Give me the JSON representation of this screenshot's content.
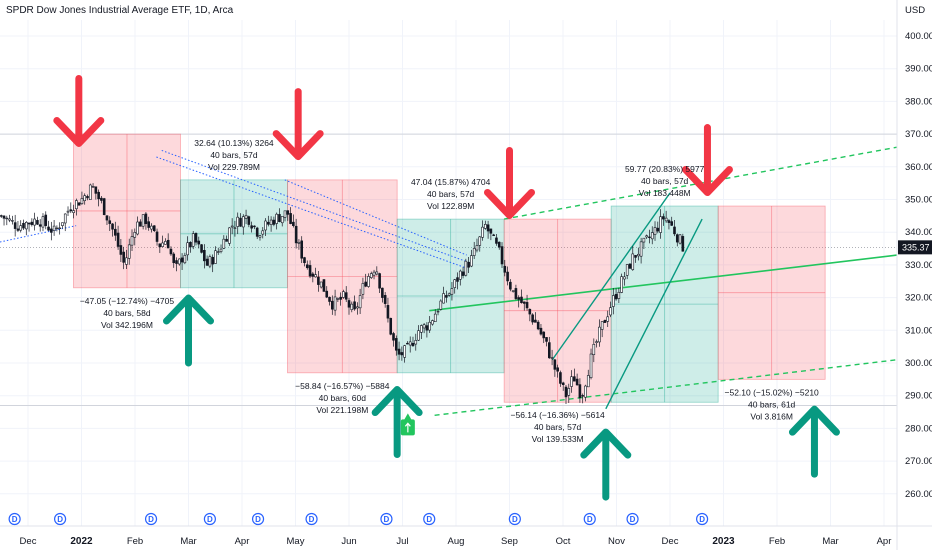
{
  "chart_data": {
    "type": "candlestick",
    "title": "SPDR Dow Jones Industrial Average ETF, 1D, Arca",
    "currency": "USD",
    "y_range": [
      250,
      405
    ],
    "y_ticks": [
      260,
      270,
      280,
      290,
      300,
      310,
      320,
      330,
      340,
      350,
      360,
      370,
      380,
      390,
      400
    ],
    "x_ticks": [
      {
        "label": "Dec",
        "pos": 0.0,
        "bold": false
      },
      {
        "label": "2022",
        "pos": 1.0,
        "bold": true
      },
      {
        "label": "Feb",
        "pos": 2.0,
        "bold": false
      },
      {
        "label": "Mar",
        "pos": 3.0,
        "bold": false
      },
      {
        "label": "Apr",
        "pos": 4.0,
        "bold": false
      },
      {
        "label": "May",
        "pos": 5.0,
        "bold": false
      },
      {
        "label": "Jun",
        "pos": 6.0,
        "bold": false
      },
      {
        "label": "Jul",
        "pos": 7.0,
        "bold": false
      },
      {
        "label": "Aug",
        "pos": 8.0,
        "bold": false
      },
      {
        "label": "Sep",
        "pos": 9.0,
        "bold": false
      },
      {
        "label": "Oct",
        "pos": 10.0,
        "bold": false
      },
      {
        "label": "Nov",
        "pos": 11.0,
        "bold": false
      },
      {
        "label": "Dec",
        "pos": 12.0,
        "bold": false
      },
      {
        "label": "2023",
        "pos": 13.0,
        "bold": true
      },
      {
        "label": "Feb",
        "pos": 14.0,
        "bold": false
      },
      {
        "label": "Mar",
        "pos": 15.0,
        "bold": false
      },
      {
        "label": "Apr",
        "pos": 16.0,
        "bold": false
      }
    ],
    "last_price": "335.37",
    "last_price_value": 335.37,
    "dividend_marker_label": "D",
    "dividend_markers": [
      -0.25,
      0.6,
      2.3,
      3.4,
      4.3,
      5.3,
      6.7,
      7.5,
      9.1,
      10.5,
      11.3,
      12.6
    ],
    "price_path": [
      [
        -0.5,
        345
      ],
      [
        -0.2,
        342
      ],
      [
        0.2,
        344
      ],
      [
        0.5,
        340
      ],
      [
        0.8,
        348
      ],
      [
        1.0,
        350
      ],
      [
        1.2,
        354
      ],
      [
        1.4,
        348
      ],
      [
        1.6,
        340
      ],
      [
        1.8,
        330
      ],
      [
        2.0,
        342
      ],
      [
        2.2,
        344
      ],
      [
        2.45,
        336
      ],
      [
        2.6,
        338
      ],
      [
        2.75,
        328
      ],
      [
        2.9,
        333
      ],
      [
        3.1,
        338
      ],
      [
        3.35,
        330
      ],
      [
        3.55,
        334
      ],
      [
        3.8,
        342
      ],
      [
        4.1,
        345
      ],
      [
        4.3,
        340
      ],
      [
        4.6,
        344
      ],
      [
        4.85,
        346
      ],
      [
        5.0,
        338
      ],
      [
        5.2,
        330
      ],
      [
        5.45,
        325
      ],
      [
        5.7,
        318
      ],
      [
        5.9,
        320
      ],
      [
        6.1,
        315
      ],
      [
        6.3,
        325
      ],
      [
        6.5,
        330
      ],
      [
        6.7,
        315
      ],
      [
        6.9,
        302
      ],
      [
        7.1,
        304
      ],
      [
        7.3,
        310
      ],
      [
        7.5,
        312
      ],
      [
        7.7,
        318
      ],
      [
        7.9,
        322
      ],
      [
        8.1,
        328
      ],
      [
        8.3,
        332
      ],
      [
        8.55,
        342
      ],
      [
        8.8,
        334
      ],
      [
        9.05,
        322
      ],
      [
        9.25,
        318
      ],
      [
        9.5,
        312
      ],
      [
        9.7,
        305
      ],
      [
        9.9,
        296
      ],
      [
        10.05,
        290
      ],
      [
        10.2,
        296
      ],
      [
        10.35,
        290
      ],
      [
        10.5,
        300
      ],
      [
        10.7,
        310
      ],
      [
        10.9,
        318
      ],
      [
        11.1,
        325
      ],
      [
        11.3,
        332
      ],
      [
        11.5,
        336
      ],
      [
        11.7,
        340
      ],
      [
        11.9,
        345
      ],
      [
        12.1,
        340
      ],
      [
        12.25,
        335.4
      ]
    ],
    "measurement_boxes": [
      {
        "x1": 0.85,
        "x2": 2.85,
        "y1": 323,
        "y2": 370,
        "type": "down",
        "lines": [
          "−47.05 (−12.74%) −4705",
          "40 bars, 58d",
          "Vol 342.196M"
        ]
      },
      {
        "x1": 2.85,
        "x2": 4.85,
        "y1": 323,
        "y2": 356,
        "type": "up",
        "lines": [
          "32.64 (10.13%) 3264",
          "40 bars, 57d",
          "Vol 229.789M"
        ]
      },
      {
        "x1": 4.85,
        "x2": 6.9,
        "y1": 297,
        "y2": 356,
        "type": "down",
        "lines": [
          "−58.84 (−16.57%) −5884",
          "40 bars, 60d",
          "Vol 221.198M"
        ]
      },
      {
        "x1": 6.9,
        "x2": 8.9,
        "y1": 297,
        "y2": 344,
        "type": "up",
        "lines": [
          "47.04 (15.87%) 4704",
          "40 bars, 57d",
          "Vol 122.89M"
        ]
      },
      {
        "x1": 8.9,
        "x2": 10.9,
        "y1": 288,
        "y2": 344,
        "type": "down",
        "lines": [
          "−56.14 (−16.36%) −5614",
          "40 bars, 57d",
          "Vol 139.533M"
        ]
      },
      {
        "x1": 10.9,
        "x2": 12.9,
        "y1": 288,
        "y2": 348,
        "type": "up",
        "lines": [
          "59.77 (20.83%) 5977",
          "40 bars, 57d",
          "Vol 183.448M"
        ]
      },
      {
        "x1": 12.9,
        "x2": 14.9,
        "y1": 295,
        "y2": 348,
        "type": "down",
        "lines": [
          "−52.10 (−15.02%) −5210",
          "40 bars, 61d",
          "Vol 3.816M"
        ]
      }
    ],
    "red_arrows_down": [
      {
        "x": 0.95,
        "y_top": 387
      },
      {
        "x": 5.05,
        "y_top": 383
      },
      {
        "x": 9.0,
        "y_top": 365
      },
      {
        "x": 12.7,
        "y_top": 372
      }
    ],
    "green_arrows_up": [
      {
        "x": 3.0,
        "y_bottom": 300
      },
      {
        "x": 6.9,
        "y_bottom": 272
      },
      {
        "x": 10.8,
        "y_bottom": 259
      },
      {
        "x": 14.7,
        "y_bottom": 266
      }
    ],
    "colors": {
      "red_zone": "#f7525f",
      "green_zone": "#22ab94",
      "arrow_red": "#f23645",
      "arrow_green": "#089981",
      "trend_green": "#22c55e",
      "channel_teal": "#089981",
      "blue_dotted": "#2962ff",
      "price_line": "#131722",
      "grid": "#f0f3fa",
      "bear": "#f23645",
      "bull": "#089981",
      "dividend": "#2962ff"
    }
  }
}
